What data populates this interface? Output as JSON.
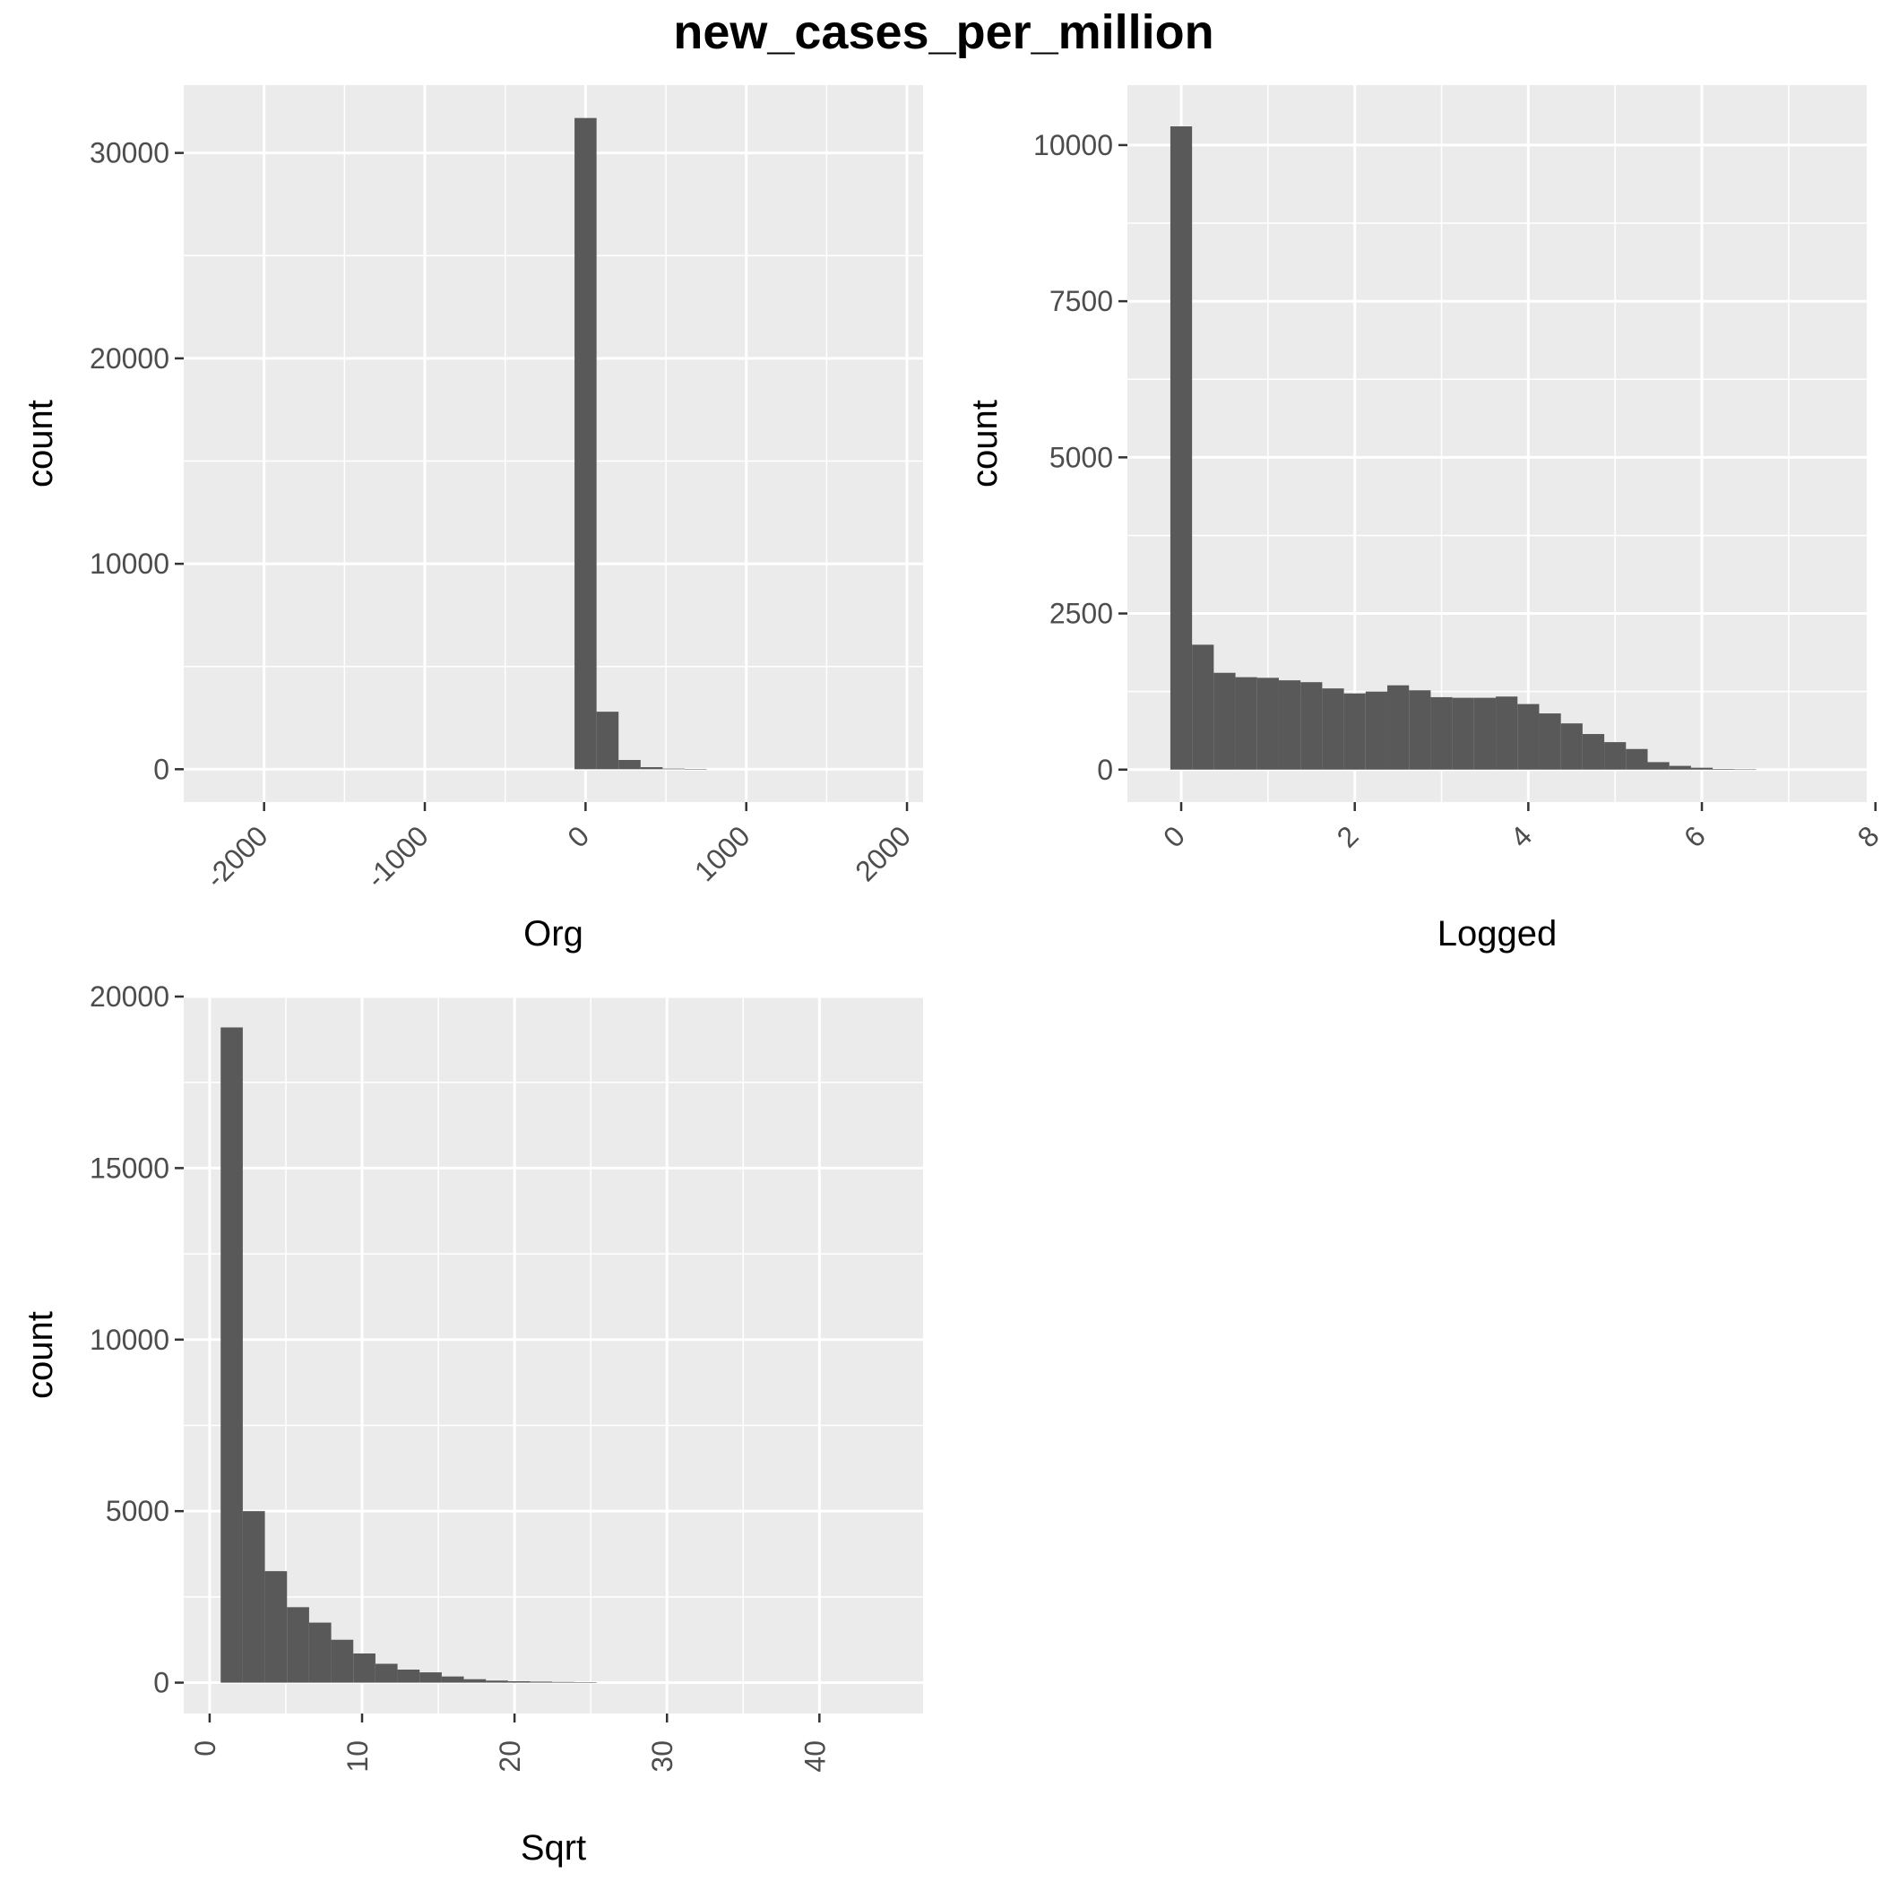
{
  "title": "new_cases_per_million",
  "chart_data": [
    {
      "type": "bar",
      "histogram": true,
      "title": "",
      "xlabel": "Org",
      "ylabel": "count",
      "xlim": [
        -2500,
        2100
      ],
      "ylim": [
        -1600,
        33300
      ],
      "x_ticks": [
        -2000,
        -1000,
        0,
        1000,
        2000
      ],
      "x_tick_labels": [
        "-2000",
        "-1000",
        "0",
        "1000",
        "2000"
      ],
      "x_tick_rotation": 45,
      "y_ticks": [
        0,
        10000,
        20000,
        30000
      ],
      "y_tick_labels": [
        "0",
        "10000",
        "20000",
        "30000"
      ],
      "bin_width": 137,
      "bins": [
        {
          "x": 0,
          "count": 31700
        },
        {
          "x": 137,
          "count": 2800
        },
        {
          "x": 274,
          "count": 450
        },
        {
          "x": 411,
          "count": 100
        },
        {
          "x": 548,
          "count": 30
        },
        {
          "x": 685,
          "count": 10
        }
      ]
    },
    {
      "type": "bar",
      "histogram": true,
      "title": "",
      "xlabel": "Logged",
      "ylabel": "count",
      "xlim": [
        -0.62,
        7.9
      ],
      "ylim": [
        -520,
        10960
      ],
      "x_ticks": [
        0,
        2,
        4,
        6,
        8
      ],
      "x_tick_labels": [
        "0",
        "2",
        "4",
        "6",
        "8"
      ],
      "x_tick_rotation": 45,
      "y_ticks": [
        0,
        2500,
        5000,
        7500,
        10000
      ],
      "y_tick_labels": [
        "0",
        "2500",
        "5000",
        "7500",
        "10000"
      ],
      "bin_width": 0.25,
      "bins": [
        {
          "x": 0.0,
          "count": 10300
        },
        {
          "x": 0.25,
          "count": 2000
        },
        {
          "x": 0.5,
          "count": 1550
        },
        {
          "x": 0.75,
          "count": 1480
        },
        {
          "x": 1.0,
          "count": 1470
        },
        {
          "x": 1.25,
          "count": 1430
        },
        {
          "x": 1.5,
          "count": 1400
        },
        {
          "x": 1.75,
          "count": 1300
        },
        {
          "x": 2.0,
          "count": 1220
        },
        {
          "x": 2.25,
          "count": 1250
        },
        {
          "x": 2.5,
          "count": 1350
        },
        {
          "x": 2.75,
          "count": 1270
        },
        {
          "x": 3.0,
          "count": 1160
        },
        {
          "x": 3.25,
          "count": 1150
        },
        {
          "x": 3.5,
          "count": 1150
        },
        {
          "x": 3.75,
          "count": 1170
        },
        {
          "x": 4.0,
          "count": 1050
        },
        {
          "x": 4.25,
          "count": 900
        },
        {
          "x": 4.5,
          "count": 740
        },
        {
          "x": 4.75,
          "count": 570
        },
        {
          "x": 5.0,
          "count": 440
        },
        {
          "x": 5.25,
          "count": 330
        },
        {
          "x": 5.5,
          "count": 120
        },
        {
          "x": 5.75,
          "count": 60
        },
        {
          "x": 6.0,
          "count": 30
        },
        {
          "x": 6.25,
          "count": 10
        },
        {
          "x": 6.5,
          "count": 3
        }
      ]
    },
    {
      "type": "bar",
      "histogram": true,
      "title": "",
      "xlabel": "Sqrt",
      "ylabel": "count",
      "xlim": [
        -1.7,
        46.8
      ],
      "ylim": [
        -900,
        20000
      ],
      "x_ticks": [
        0,
        10,
        20,
        30,
        40
      ],
      "x_tick_labels": [
        "0",
        "10",
        "20",
        "30",
        "40"
      ],
      "x_tick_rotation": 90,
      "y_ticks": [
        0,
        5000,
        10000,
        15000,
        20000
      ],
      "y_tick_labels": [
        "0",
        "5000",
        "10000",
        "15000",
        "20000"
      ],
      "bin_width": 1.45,
      "bins": [
        {
          "x": 1.45,
          "count": 19100
        },
        {
          "x": 2.9,
          "count": 5000
        },
        {
          "x": 4.35,
          "count": 3250
        },
        {
          "x": 5.8,
          "count": 2200
        },
        {
          "x": 7.25,
          "count": 1750
        },
        {
          "x": 8.7,
          "count": 1250
        },
        {
          "x": 10.15,
          "count": 850
        },
        {
          "x": 11.6,
          "count": 550
        },
        {
          "x": 13.05,
          "count": 380
        },
        {
          "x": 14.5,
          "count": 300
        },
        {
          "x": 15.95,
          "count": 180
        },
        {
          "x": 17.4,
          "count": 100
        },
        {
          "x": 18.85,
          "count": 60
        },
        {
          "x": 20.3,
          "count": 40
        },
        {
          "x": 21.75,
          "count": 30
        },
        {
          "x": 23.2,
          "count": 20
        },
        {
          "x": 24.65,
          "count": 15
        }
      ]
    }
  ]
}
